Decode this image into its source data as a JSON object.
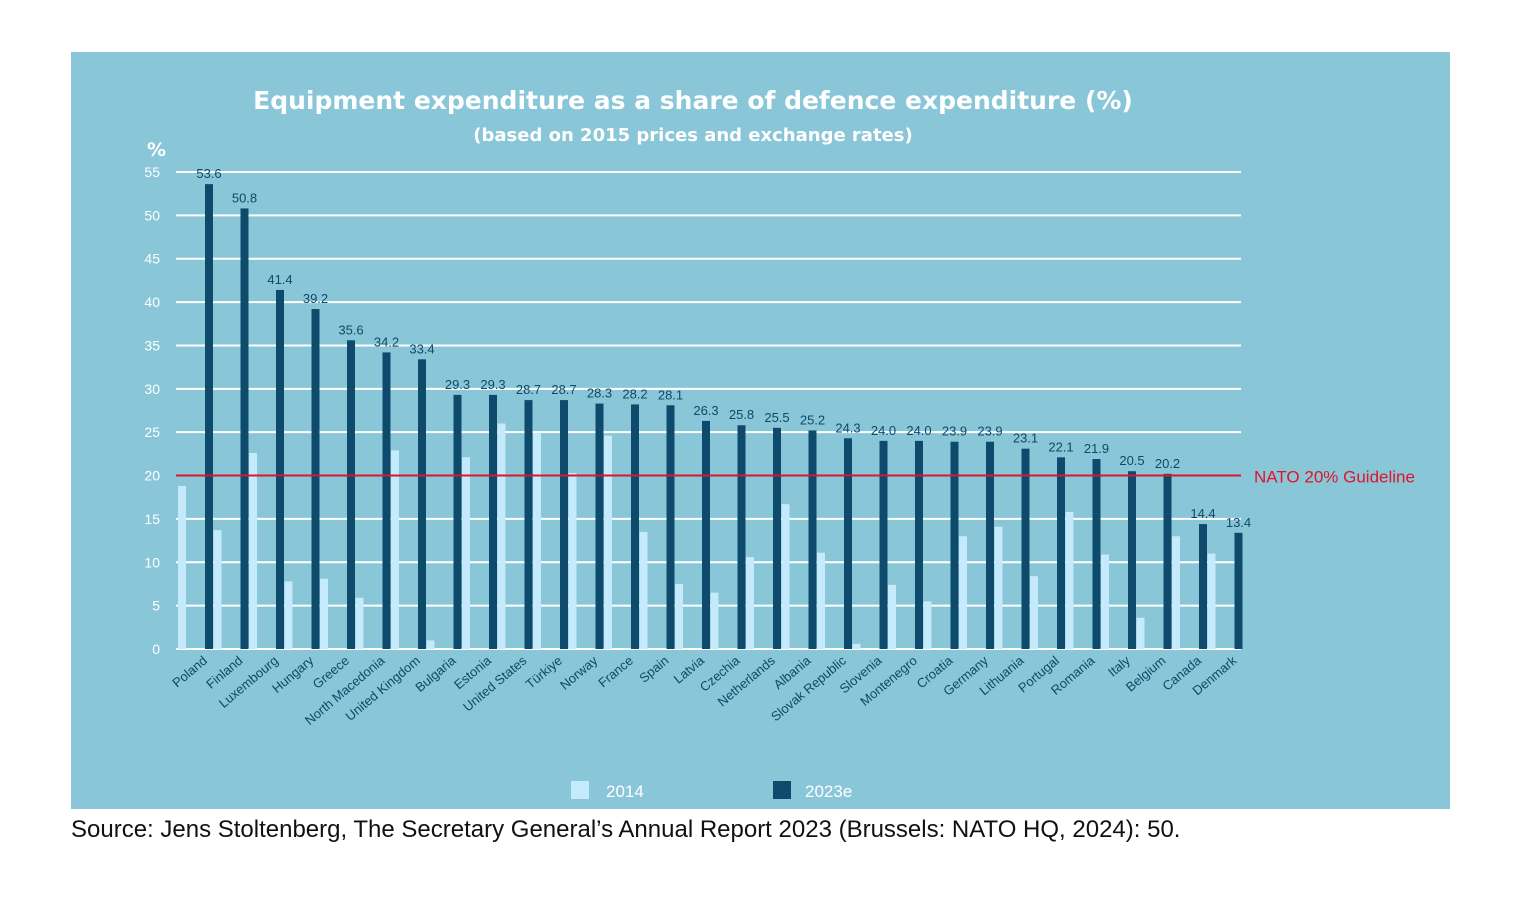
{
  "chart_data": {
    "type": "bar",
    "title": "Equipment expenditure as a share of defence expenditure (%)",
    "subtitle": "(based on 2015 prices and exchange rates)",
    "ylabel": "%",
    "ylim": [
      0,
      55
    ],
    "yticks": [
      "0",
      "5",
      "10",
      "15",
      "20",
      "25",
      "30",
      "35",
      "40",
      "45",
      "50",
      "55"
    ],
    "grid": true,
    "legend_position": "bottom",
    "categories": [
      "Poland",
      "Finland",
      "Luxembourg",
      "Hungary",
      "Greece",
      "North Macedonia",
      "United Kingdom",
      "Bulgaria",
      "Estonia",
      "United States",
      "Türkiye",
      "Norway",
      "France",
      "Spain",
      "Latvia",
      "Czechia",
      "Netherlands",
      "Albania",
      "Slovak Republic",
      "Slovenia",
      "Montenegro",
      "Croatia",
      "Germany",
      "Lithuania",
      "Portugal",
      "Romania",
      "Italy",
      "Belgium",
      "Canada",
      "Denmark"
    ],
    "series": [
      {
        "name": "2014",
        "color": "#c4eafb",
        "values": [
          18.8,
          13.7,
          22.6,
          7.8,
          8.1,
          5.9,
          22.9,
          1.0,
          22.1,
          26.0,
          24.9,
          20.3,
          24.6,
          13.5,
          7.5,
          6.5,
          10.6,
          16.7,
          11.1,
          0.6,
          7.4,
          5.5,
          13.0,
          14.1,
          8.4,
          15.8,
          10.9,
          3.6,
          13.0,
          11.0
        ]
      },
      {
        "name": "2023e",
        "color": "#0d4a6b",
        "show_labels": true,
        "values": [
          53.6,
          50.8,
          41.4,
          39.2,
          35.6,
          34.2,
          33.4,
          29.3,
          29.3,
          28.7,
          28.7,
          28.3,
          28.2,
          28.1,
          26.3,
          25.8,
          25.5,
          25.2,
          24.3,
          24.0,
          24.0,
          23.9,
          23.9,
          23.1,
          22.1,
          21.9,
          20.5,
          20.2,
          14.4,
          13.4
        ]
      }
    ],
    "reference_line": {
      "value": 20,
      "label": "NATO 20% Guideline",
      "color": "#e0142b"
    },
    "background": "#89c6d8"
  },
  "source": "Source: Jens Stoltenberg, The Secretary General’s Annual Report 2023 (Brussels: NATO HQ, 2024): 50."
}
